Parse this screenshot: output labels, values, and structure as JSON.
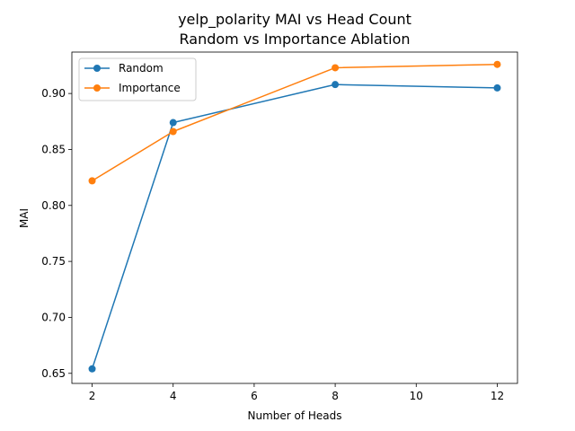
{
  "chart_data": {
    "type": "line",
    "title": "yelp_polarity MAI vs Head Count",
    "subtitle": "Random vs Importance Ablation",
    "xlabel": "Number of Heads",
    "ylabel": "MAI",
    "x": [
      2,
      4,
      8,
      12
    ],
    "xlim": [
      1.5,
      12.5
    ],
    "ylim": [
      0.641,
      0.937
    ],
    "xticks": [
      2,
      4,
      6,
      8,
      10,
      12
    ],
    "xtick_labels": [
      "2",
      "4",
      "6",
      "8",
      "10",
      "12"
    ],
    "yticks": [
      0.65,
      0.7,
      0.75,
      0.8,
      0.85,
      0.9
    ],
    "ytick_labels": [
      "0.65",
      "0.70",
      "0.75",
      "0.80",
      "0.85",
      "0.90"
    ],
    "grid": false,
    "legend_position": "upper-left",
    "marker": "circle",
    "series": [
      {
        "name": "Random",
        "color": "#1f77b4",
        "values": [
          0.654,
          0.874,
          0.908,
          0.905
        ]
      },
      {
        "name": "Importance",
        "color": "#ff7f0e",
        "values": [
          0.822,
          0.866,
          0.923,
          0.926
        ]
      }
    ]
  }
}
